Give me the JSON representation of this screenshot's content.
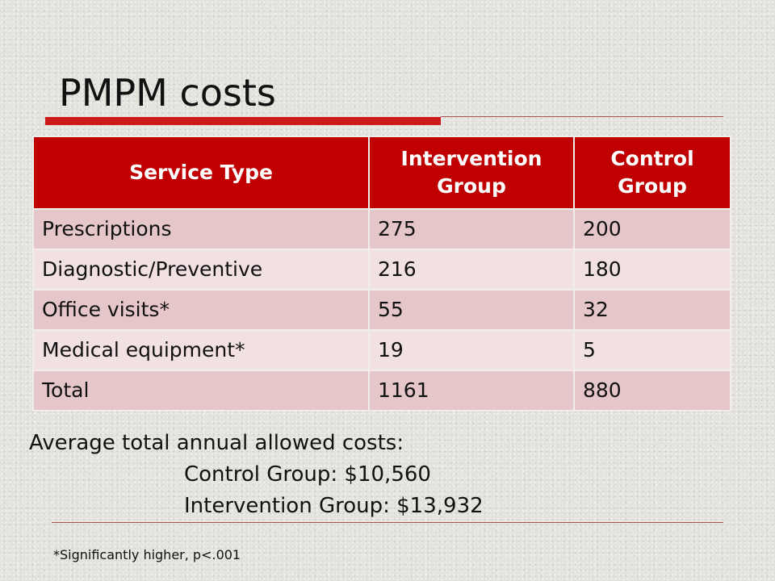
{
  "slide": {
    "title": "PMPM costs",
    "accent_color": "#cc1a1a"
  },
  "table": {
    "headers": [
      "Service Type",
      "Intervention\nGroup",
      "Control\nGroup"
    ],
    "header_lines": [
      [
        "Service Type"
      ],
      [
        "Intervention",
        "Group"
      ],
      [
        "Control",
        "Group"
      ]
    ],
    "rows": [
      [
        "Prescriptions",
        "275",
        "200"
      ],
      [
        "Diagnostic/Preventive",
        "216",
        "180"
      ],
      [
        "Office visits*",
        "55",
        "32"
      ],
      [
        "Medical equipment*",
        "19",
        "5"
      ],
      [
        "Total",
        "1161",
        "880"
      ]
    ],
    "header_color": "#c00000",
    "row_colors": [
      "#e5c7ca",
      "#f2e1e3"
    ]
  },
  "summary": {
    "heading": "Average total annual allowed costs:",
    "control_line": "Control Group: $10,560",
    "intervention_line": "Intervention Group: $13,932"
  },
  "footnote": "*Significantly higher, p<.001"
}
